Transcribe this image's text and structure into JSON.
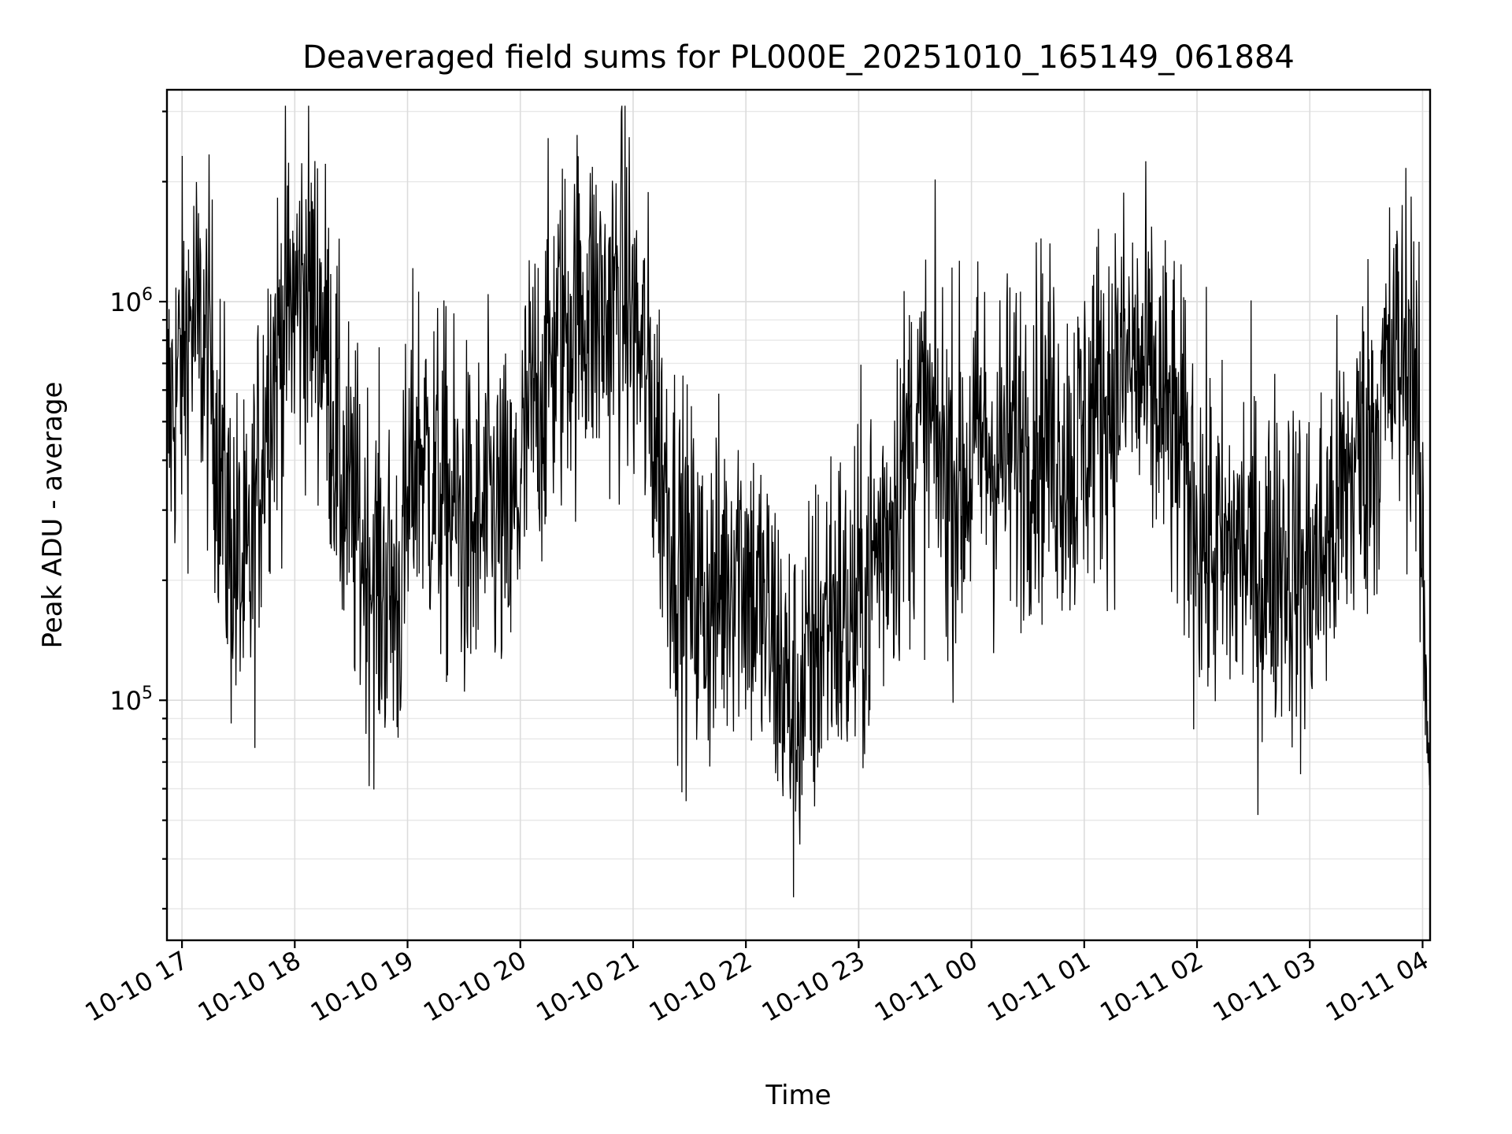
{
  "chart_data": {
    "type": "line",
    "title": "Deaveraged field sums for PL000E_20251010_165149_061884",
    "xlabel": "Time",
    "ylabel": "Peak ADU - average",
    "yscale": "log",
    "ylim": [
      25000,
      3400000
    ],
    "xlim": [
      "2025-10-10 16:52",
      "2025-10-11 04:04"
    ],
    "grid": true,
    "legend": "none",
    "line_color": "#000000",
    "x_tick_labels": [
      {
        "t": "2025-10-10 17:00",
        "label": "10-10 17"
      },
      {
        "t": "2025-10-10 18:00",
        "label": "10-10 18"
      },
      {
        "t": "2025-10-10 19:00",
        "label": "10-10 19"
      },
      {
        "t": "2025-10-10 20:00",
        "label": "10-10 20"
      },
      {
        "t": "2025-10-10 21:00",
        "label": "10-10 21"
      },
      {
        "t": "2025-10-10 22:00",
        "label": "10-10 22"
      },
      {
        "t": "2025-10-10 23:00",
        "label": "10-10 23"
      },
      {
        "t": "2025-10-11 00:00",
        "label": "10-11 00"
      },
      {
        "t": "2025-10-11 01:00",
        "label": "10-11 01"
      },
      {
        "t": "2025-10-11 02:00",
        "label": "10-11 02"
      },
      {
        "t": "2025-10-11 03:00",
        "label": "10-11 03"
      },
      {
        "t": "2025-10-11 04:00",
        "label": "10-11 04"
      }
    ],
    "y_tick_labels": [
      {
        "value": 100000,
        "base": "10",
        "exp": "5"
      },
      {
        "value": 1000000,
        "base": "10",
        "exp": "6"
      }
    ],
    "series": [
      {
        "x": [
          "2025-10-10 16:52",
          "2025-10-10 16:57",
          "2025-10-10 17:05",
          "2025-10-10 17:15",
          "2025-10-10 17:25",
          "2025-10-10 17:35",
          "2025-10-10 17:45",
          "2025-10-10 17:55",
          "2025-10-10 18:05",
          "2025-10-10 18:15",
          "2025-10-10 18:25",
          "2025-10-10 18:35",
          "2025-10-10 18:45",
          "2025-10-10 18:55",
          "2025-10-10 19:05",
          "2025-10-10 19:15",
          "2025-10-10 19:25",
          "2025-10-10 19:35",
          "2025-10-10 19:45",
          "2025-10-10 19:55",
          "2025-10-10 20:05",
          "2025-10-10 20:15",
          "2025-10-10 20:25",
          "2025-10-10 20:35",
          "2025-10-10 20:45",
          "2025-10-10 20:55",
          "2025-10-10 21:05",
          "2025-10-10 21:15",
          "2025-10-10 21:25",
          "2025-10-10 21:35",
          "2025-10-10 21:45",
          "2025-10-10 21:55",
          "2025-10-10 22:05",
          "2025-10-10 22:15",
          "2025-10-10 22:25",
          "2025-10-10 22:35",
          "2025-10-10 22:45",
          "2025-10-10 22:55",
          "2025-10-10 23:05",
          "2025-10-10 23:15",
          "2025-10-10 23:25",
          "2025-10-10 23:35",
          "2025-10-10 23:45",
          "2025-10-10 23:55",
          "2025-10-11 00:05",
          "2025-10-11 00:15",
          "2025-10-11 00:25",
          "2025-10-11 00:35",
          "2025-10-11 00:45",
          "2025-10-11 00:55",
          "2025-10-11 01:05",
          "2025-10-11 01:15",
          "2025-10-11 01:25",
          "2025-10-11 01:35",
          "2025-10-11 01:45",
          "2025-10-11 01:55",
          "2025-10-11 02:05",
          "2025-10-11 02:15",
          "2025-10-11 02:25",
          "2025-10-11 02:35",
          "2025-10-11 02:45",
          "2025-10-11 02:55",
          "2025-10-11 03:05",
          "2025-10-11 03:15",
          "2025-10-11 03:25",
          "2025-10-11 03:35",
          "2025-10-11 03:45",
          "2025-10-11 03:55",
          "2025-10-11 04:03"
        ],
        "y": [
          480000,
          600000,
          900000,
          700000,
          250000,
          180000,
          600000,
          900000,
          1100000,
          900000,
          350000,
          250000,
          200000,
          180000,
          450000,
          350000,
          300000,
          250000,
          300000,
          250000,
          500000,
          700000,
          900000,
          1000000,
          900000,
          1100000,
          700000,
          400000,
          220000,
          180000,
          180000,
          250000,
          180000,
          140000,
          90000,
          120000,
          180000,
          150000,
          200000,
          280000,
          400000,
          500000,
          400000,
          350000,
          450000,
          400000,
          450000,
          500000,
          450000,
          400000,
          550000,
          600000,
          700000,
          600000,
          500000,
          350000,
          250000,
          220000,
          250000,
          200000,
          250000,
          200000,
          220000,
          300000,
          400000,
          500000,
          700000,
          800000,
          90000
        ]
      }
    ]
  }
}
